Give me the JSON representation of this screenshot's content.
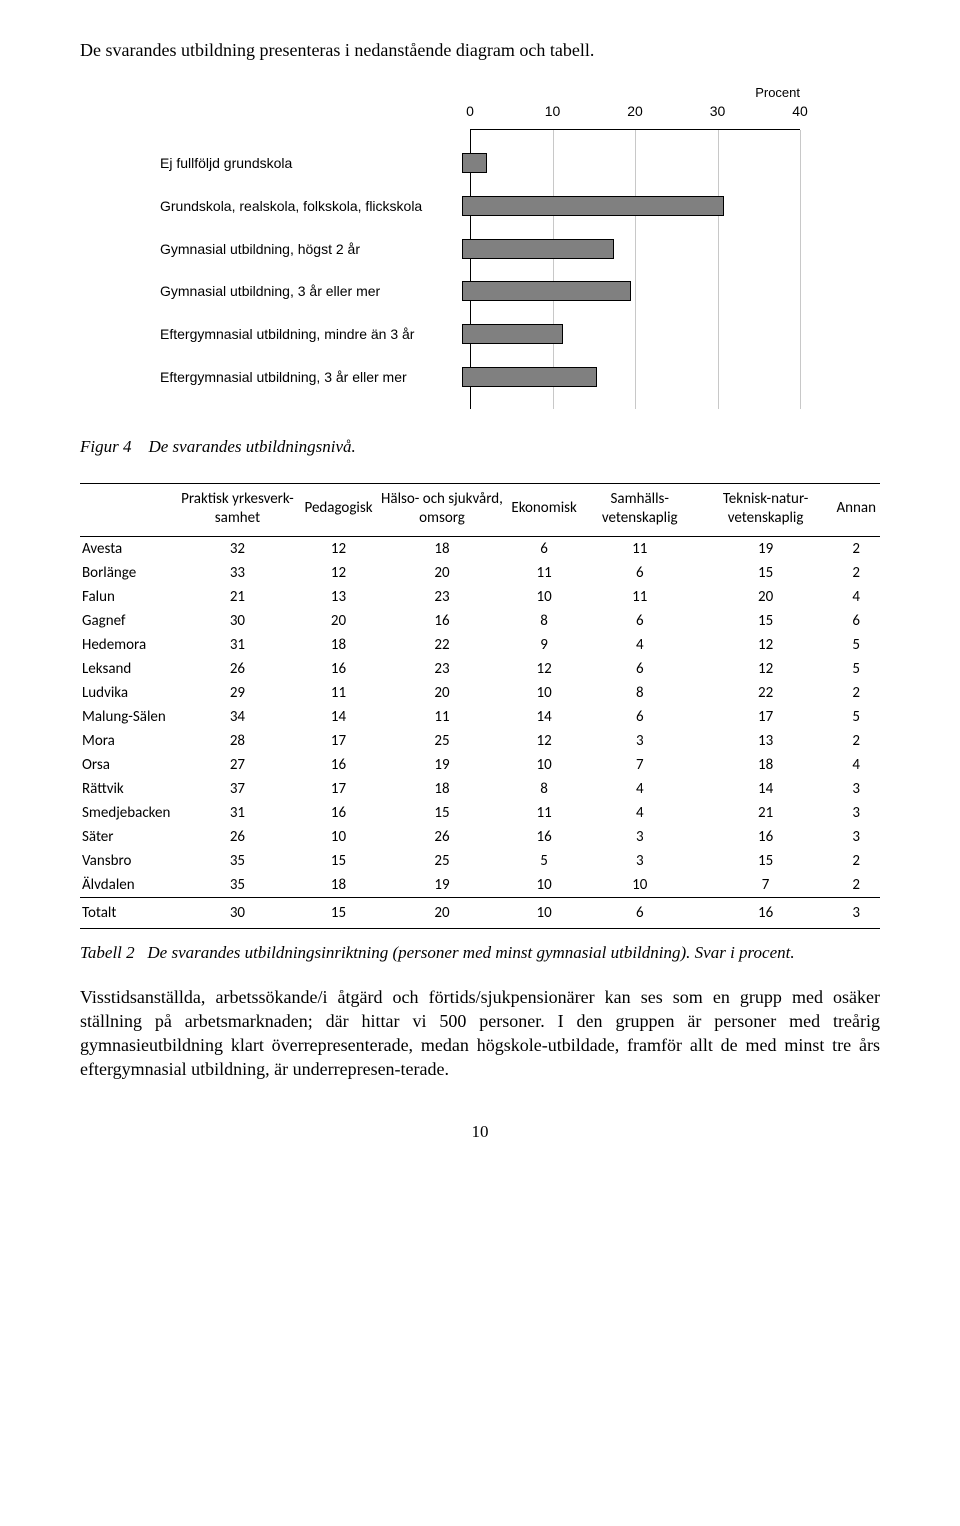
{
  "intro": "De svarandes utbildning presenteras i nedanstående diagram och tabell.",
  "chart": {
    "type": "bar",
    "axis_title": "Procent",
    "xlim": [
      0,
      40
    ],
    "ticks": [
      0,
      10,
      20,
      30,
      40
    ],
    "bar_color": "#808080",
    "border_color": "#000000",
    "grid_color": "#c8c8c8",
    "background_color": "#ffffff",
    "label_font": "Arial",
    "label_fontsize": 14,
    "categories": [
      "Ej fullföljd grundskola",
      "Grundskola, realskola, folkskola, flickskola",
      "Gymnasial utbildning, högst 2 år",
      "Gymnasial utbildning, 3 år eller mer",
      "Eftergymnasial utbildning, mindre än 3 år",
      "Eftergymnasial utbildning, 3 år eller mer"
    ],
    "values": [
      3,
      31,
      18,
      20,
      12,
      16
    ]
  },
  "figure_caption": {
    "label": "Figur 4",
    "text": "De svarandes utbildningsnivå."
  },
  "table": {
    "columns": [
      "",
      "Praktisk yrkesverk-samhet",
      "Pedagogisk",
      "Hälso- och sjukvård, omsorg",
      "Ekonomisk",
      "Samhälls-vetenskaplig",
      "Teknisk-natur-vetenskaplig",
      "Annan"
    ],
    "rows": [
      [
        "Avesta",
        32,
        12,
        18,
        6,
        11,
        19,
        2
      ],
      [
        "Borlänge",
        33,
        12,
        20,
        11,
        6,
        15,
        2
      ],
      [
        "Falun",
        21,
        13,
        23,
        10,
        11,
        20,
        4
      ],
      [
        "Gagnef",
        30,
        20,
        16,
        8,
        6,
        15,
        6
      ],
      [
        "Hedemora",
        31,
        18,
        22,
        9,
        4,
        12,
        5
      ],
      [
        "Leksand",
        26,
        16,
        23,
        12,
        6,
        12,
        5
      ],
      [
        "Ludvika",
        29,
        11,
        20,
        10,
        8,
        22,
        2
      ],
      [
        "Malung-Sälen",
        34,
        14,
        11,
        14,
        6,
        17,
        5
      ],
      [
        "Mora",
        28,
        17,
        25,
        12,
        3,
        13,
        2
      ],
      [
        "Orsa",
        27,
        16,
        19,
        10,
        7,
        18,
        4
      ],
      [
        "Rättvik",
        37,
        17,
        18,
        8,
        4,
        14,
        3
      ],
      [
        "Smedjebacken",
        31,
        16,
        15,
        11,
        4,
        21,
        3
      ],
      [
        "Säter",
        26,
        10,
        26,
        16,
        3,
        16,
        3
      ],
      [
        "Vansbro",
        35,
        15,
        25,
        5,
        3,
        15,
        2
      ],
      [
        "Älvdalen",
        35,
        18,
        19,
        10,
        10,
        7,
        2
      ]
    ],
    "total": [
      "Totalt",
      30,
      15,
      20,
      10,
      6,
      16,
      3
    ]
  },
  "table_caption": {
    "label": "Tabell 2",
    "text": "De svarandes utbildningsinriktning (personer med minst gymnasial utbildning). Svar i procent."
  },
  "body_text": "Visstidsanställda, arbetssökande/i åtgärd och förtids/sjukpensionärer kan ses som en grupp med osäker ställning på arbetsmarknaden; där hittar vi 500 personer. I den gruppen är personer med treårig gymnasieutbildning klart överrepresenterade, medan högskole-utbildade, framför allt de med minst tre års eftergymnasial utbildning, är underrepresen-terade.",
  "page_number": "10"
}
